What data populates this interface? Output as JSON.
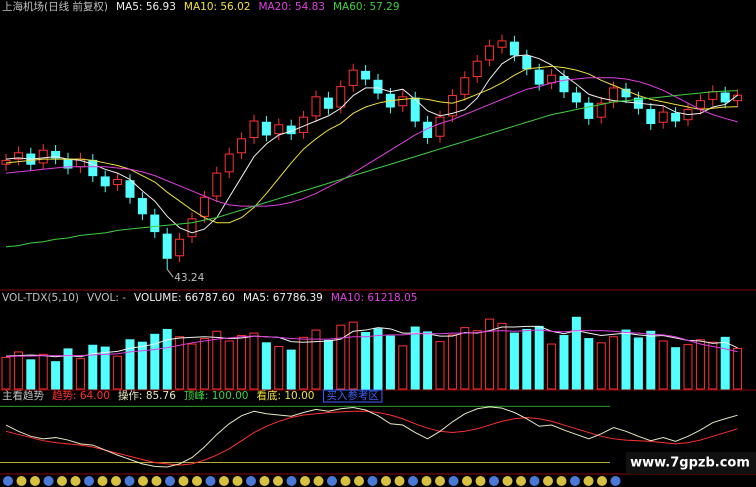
{
  "chart_data": [
    {
      "type": "candlestick",
      "title": "上海机场(日线 前复权)",
      "title_color": "#c0c0c0",
      "up_color": "#ff3232",
      "down_color": "#54ffff",
      "ylim": [
        42,
        63
      ],
      "open": [
        51.5,
        51.9,
        52.3,
        51.6,
        52.5,
        51.9,
        51.3,
        51.8,
        50.5,
        49.9,
        50.2,
        48.8,
        47.5,
        46.0,
        44.3,
        45.8,
        47.4,
        49.0,
        50.9,
        52.4,
        53.6,
        54.8,
        53.9,
        54.5,
        54.0,
        55.3,
        56.7,
        56.0,
        57.7,
        58.8,
        58.1,
        57.0,
        56.1,
        56.7,
        54.8,
        53.7,
        55.3,
        57.0,
        58.4,
        59.7,
        60.7,
        61.1,
        60.0,
        58.9,
        57.9,
        58.4,
        57.1,
        56.3,
        55.2,
        56.4,
        57.4,
        56.7,
        55.8,
        54.8,
        55.5,
        55.0,
        55.9,
        56.6,
        57.1,
        56.5
      ],
      "high": [
        52.3,
        52.9,
        52.8,
        53.1,
        53.0,
        52.4,
        52.4,
        52.3,
        51.0,
        50.8,
        50.7,
        49.3,
        48.0,
        46.5,
        46.1,
        47.7,
        49.4,
        51.3,
        52.8,
        54.0,
        55.4,
        55.3,
        55.1,
        55.0,
        55.7,
        57.3,
        57.2,
        58.1,
        59.4,
        59.3,
        58.6,
        57.5,
        57.3,
        57.2,
        55.3,
        55.7,
        57.4,
        58.8,
        60.1,
        61.3,
        61.7,
        61.6,
        60.5,
        59.4,
        59.0,
        58.9,
        57.6,
        56.8,
        56.8,
        58.0,
        57.9,
        57.2,
        56.3,
        56.1,
        56.0,
        56.3,
        57.0,
        57.7,
        57.6,
        57.4
      ],
      "low": [
        51.0,
        51.4,
        51.0,
        51.1,
        51.5,
        50.7,
        50.8,
        50.1,
        49.3,
        49.4,
        48.4,
        47.1,
        45.7,
        43.24,
        43.8,
        45.3,
        46.9,
        48.5,
        50.4,
        51.9,
        53.1,
        53.3,
        53.4,
        53.4,
        53.5,
        54.8,
        55.4,
        55.5,
        57.2,
        57.7,
        56.6,
        55.5,
        55.6,
        54.4,
        53.1,
        53.2,
        54.8,
        56.5,
        57.9,
        59.2,
        60.2,
        59.6,
        58.5,
        57.3,
        57.4,
        56.7,
        55.9,
        54.6,
        54.7,
        55.9,
        56.3,
        55.4,
        54.2,
        54.3,
        54.4,
        54.5,
        55.4,
        56.1,
        55.9,
        56.0
      ],
      "close": [
        51.8,
        52.4,
        51.5,
        52.6,
        52.0,
        51.2,
        51.9,
        50.6,
        49.8,
        50.3,
        48.9,
        47.6,
        46.2,
        44.1,
        45.6,
        47.2,
        48.9,
        50.8,
        52.3,
        53.5,
        54.9,
        53.8,
        54.6,
        53.9,
        55.2,
        56.8,
        55.9,
        57.6,
        58.9,
        58.2,
        57.1,
        56.0,
        56.8,
        54.9,
        53.6,
        55.2,
        56.9,
        58.3,
        59.6,
        60.8,
        61.2,
        60.1,
        59.0,
        57.8,
        58.5,
        57.2,
        56.4,
        55.1,
        56.3,
        57.5,
        56.8,
        55.9,
        54.7,
        55.6,
        54.9,
        55.8,
        56.5,
        57.2,
        56.4,
        56.93
      ],
      "series": [
        {
          "name": "MA5: 56.93",
          "color": "#f0f0f0",
          "values": [
            51.9,
            52.0,
            51.9,
            52.0,
            52.1,
            51.9,
            51.8,
            51.5,
            51.1,
            50.8,
            50.3,
            49.4,
            48.6,
            47.4,
            46.5,
            46.1,
            46.4,
            47.3,
            48.9,
            50.5,
            52.1,
            53.1,
            53.8,
            54.1,
            54.5,
            54.9,
            55.3,
            55.9,
            56.9,
            57.5,
            57.5,
            57.2,
            57.4,
            56.6,
            55.7,
            55.3,
            55.5,
            55.8,
            56.7,
            58.2,
            59.4,
            60.0,
            60.1,
            59.8,
            59.3,
            58.5,
            57.8,
            57.0,
            56.7,
            56.5,
            56.4,
            56.3,
            56.2,
            56.1,
            55.6,
            55.4,
            55.5,
            56.0,
            56.2,
            56.93
          ]
        },
        {
          "name": "MA10: 56.02",
          "color": "#f0e040",
          "values": [
            51.6,
            51.7,
            51.8,
            51.9,
            51.9,
            51.9,
            51.9,
            51.8,
            51.6,
            51.4,
            51.1,
            50.6,
            50.1,
            49.3,
            48.6,
            47.9,
            47.3,
            46.9,
            46.9,
            47.3,
            48.1,
            49.2,
            50.4,
            51.6,
            52.7,
            53.5,
            54.2,
            54.7,
            55.5,
            56.0,
            56.3,
            56.5,
            56.6,
            56.7,
            56.6,
            56.4,
            56.3,
            56.6,
            57.0,
            57.4,
            57.9,
            58.5,
            59.0,
            59.1,
            59.2,
            59.1,
            58.9,
            58.6,
            58.1,
            57.7,
            57.3,
            56.9,
            56.6,
            56.4,
            56.2,
            56.0,
            55.8,
            55.9,
            56.0,
            56.02
          ]
        },
        {
          "name": "MA20: 54.83",
          "color": "#e040e0",
          "values": [
            50.8,
            50.9,
            51.0,
            51.1,
            51.2,
            51.3,
            51.3,
            51.3,
            51.3,
            51.2,
            51.1,
            50.9,
            50.6,
            50.2,
            49.8,
            49.4,
            49.0,
            48.6,
            48.3,
            48.2,
            48.2,
            48.2,
            48.3,
            48.5,
            48.8,
            49.2,
            49.7,
            50.2,
            50.8,
            51.4,
            52.0,
            52.6,
            53.2,
            53.8,
            54.3,
            54.7,
            55.0,
            55.4,
            55.8,
            56.2,
            56.6,
            57.0,
            57.4,
            57.6,
            57.9,
            58.1,
            58.2,
            58.3,
            58.3,
            58.3,
            58.2,
            58.0,
            57.7,
            57.3,
            56.8,
            56.3,
            55.8,
            55.4,
            55.1,
            54.83
          ]
        },
        {
          "name": "MA60: 57.29",
          "color": "#40d040",
          "values": [
            45.0,
            45.1,
            45.3,
            45.4,
            45.6,
            45.7,
            45.9,
            46.0,
            46.1,
            46.3,
            46.4,
            46.5,
            46.6,
            46.7,
            46.8,
            46.9,
            47.1,
            47.3,
            47.6,
            47.9,
            48.2,
            48.5,
            48.8,
            49.1,
            49.4,
            49.7,
            50.0,
            50.3,
            50.6,
            50.9,
            51.2,
            51.5,
            51.8,
            52.1,
            52.4,
            52.7,
            53.0,
            53.3,
            53.6,
            53.9,
            54.2,
            54.5,
            54.8,
            55.1,
            55.4,
            55.6,
            55.8,
            56.0,
            56.2,
            56.4,
            56.5,
            56.6,
            56.7,
            56.8,
            56.9,
            57.0,
            57.1,
            57.2,
            57.25,
            57.29
          ]
        }
      ],
      "annotation": "43.24"
    },
    {
      "type": "bar",
      "title": "VOL-TDX(5,10)",
      "subtitle": "VVOL: -",
      "title_color": "#c0c0c0",
      "ylim": [
        0,
        130000
      ],
      "series": [
        {
          "name": "VOLUME: 66787.60",
          "color": "#f0f0f0",
          "values": [
            52000,
            61000,
            48000,
            57000,
            45000,
            66000,
            50000,
            72000,
            69000,
            54000,
            81000,
            77000,
            90000,
            98000,
            86000,
            74000,
            83000,
            95000,
            79000,
            88000,
            92000,
            76000,
            70000,
            64000,
            85000,
            97000,
            80000,
            105000,
            110000,
            93000,
            99000,
            87000,
            71000,
            102000,
            94000,
            78000,
            89000,
            101000,
            96000,
            115000,
            108000,
            92000,
            98000,
            103000,
            74000,
            88000,
            118000,
            83000,
            76000,
            86000,
            97000,
            84000,
            95000,
            79000,
            68000,
            73000,
            81000,
            77000,
            85000,
            66787.6
          ]
        },
        {
          "name": "MA5: 67786.39",
          "color": "#f0f0f0",
          "values": [
            54000,
            55000,
            56000,
            55000,
            53000,
            55000,
            53000,
            58000,
            60000,
            62000,
            67000,
            70000,
            74000,
            81000,
            84000,
            85000,
            86000,
            85000,
            83000,
            84000,
            87000,
            86000,
            85000,
            78000,
            77000,
            78000,
            79000,
            82000,
            95000,
            97000,
            101000,
            99000,
            92000,
            92000,
            91000,
            87000,
            87000,
            93000,
            92000,
            96000,
            102000,
            102000,
            103000,
            103000,
            95000,
            91000,
            96000,
            92000,
            88000,
            90000,
            92000,
            89000,
            87000,
            88000,
            84000,
            80000,
            79000,
            75000,
            77000,
            67786.39
          ]
        },
        {
          "name": "MA10: 61218.05",
          "color": "#e040e0",
          "values": [
            53000,
            54000,
            54000,
            55000,
            55000,
            55000,
            55000,
            56000,
            57000,
            58000,
            61000,
            63000,
            65000,
            68000,
            72000,
            76000,
            79000,
            82000,
            84000,
            86000,
            87000,
            86000,
            85000,
            83000,
            82000,
            82000,
            82000,
            84000,
            86000,
            86000,
            88000,
            89000,
            89000,
            91000,
            91000,
            91000,
            92000,
            92000,
            93000,
            95000,
            96000,
            95000,
            96000,
            97000,
            95000,
            94000,
            96000,
            96000,
            96000,
            95000,
            93000,
            92000,
            90000,
            89000,
            86000,
            80000,
            74000,
            70000,
            66000,
            61218.05
          ]
        }
      ]
    },
    {
      "type": "line",
      "title": "主看趋势",
      "title_color": "#c0c0c0",
      "ylim": [
        -5,
        110
      ],
      "series": [
        {
          "name": "趋势: 64.00",
          "color": "#ff3030",
          "values": [
            60,
            55,
            50,
            45,
            42,
            40,
            38,
            35,
            30,
            25,
            20,
            15,
            10,
            8,
            6,
            8,
            14,
            22,
            32,
            45,
            58,
            68,
            76,
            82,
            86,
            88,
            90,
            91,
            92,
            92,
            90,
            86,
            80,
            72,
            65,
            60,
            58,
            60,
            64,
            70,
            76,
            80,
            82,
            80,
            76,
            70,
            64,
            58,
            52,
            48,
            46,
            45,
            44,
            42,
            40,
            42,
            46,
            52,
            58,
            64
          ]
        },
        {
          "name": "操作: 85.76",
          "color": "#e8e8c0",
          "values": [
            70,
            60,
            52,
            48,
            50,
            46,
            40,
            38,
            30,
            22,
            15,
            8,
            4,
            3,
            8,
            18,
            35,
            55,
            72,
            85,
            92,
            88,
            86,
            84,
            90,
            95,
            92,
            96,
            98,
            94,
            85,
            72,
            70,
            58,
            48,
            60,
            75,
            88,
            96,
            99,
            97,
            90,
            80,
            68,
            70,
            62,
            55,
            48,
            56,
            66,
            60,
            52,
            45,
            50,
            44,
            52,
            62,
            74,
            80,
            85.76
          ]
        }
      ],
      "hlines": [
        {
          "name": "顶峰: 100.00",
          "value": 100,
          "color": "#40d040"
        },
        {
          "name": "看底: 10.00",
          "value": 10,
          "color": "#f0e040"
        }
      ],
      "note": "买入参考区"
    }
  ],
  "watermark": "www.7gpzb.com"
}
